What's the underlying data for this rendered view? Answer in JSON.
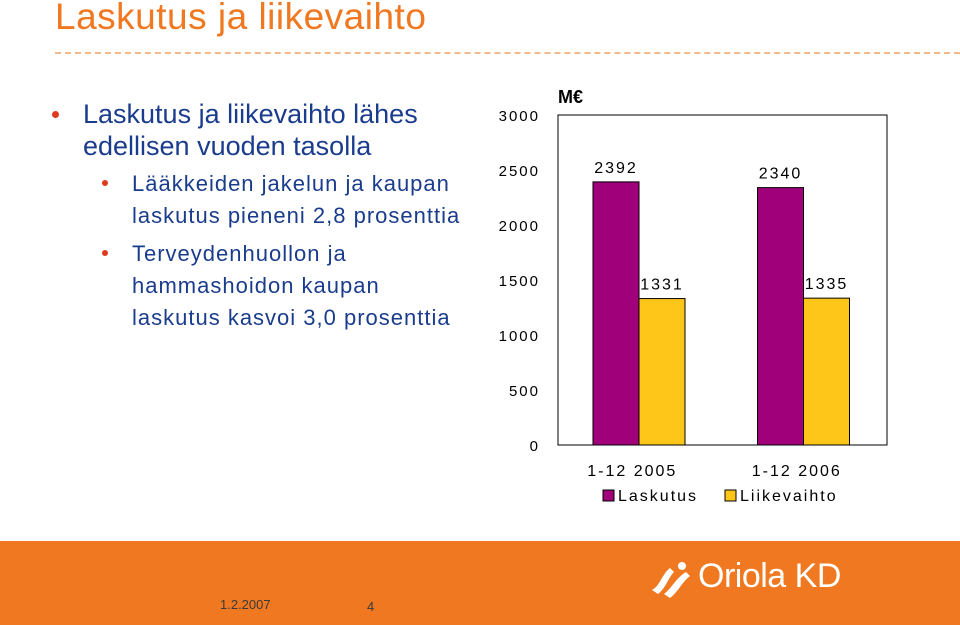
{
  "slide": {
    "title": "Laskutus ja liikevaihto",
    "bullets": [
      {
        "text": "Laskutus ja liikevaihto lähes edellisen vuoden tasolla",
        "sub": [
          "Lääkkeiden jakelun ja kaupan laskutus pieneni 2,8 prosenttia",
          "Terveydenhuollon ja hammashoidon kaupan laskutus kasvoi 3,0 prosenttia"
        ]
      }
    ],
    "footer": {
      "date": "1.2.2007",
      "page": "4",
      "logo": "Oriola KD"
    },
    "colors": {
      "title": "#f07820",
      "footer_band": "#f07820",
      "bullet_text": "#1a3c8c",
      "bullet_dot": "#e03a1e"
    }
  },
  "chart_data": {
    "type": "bar",
    "title": "",
    "ylabel": "M€",
    "xlabel": "",
    "ylim": [
      0,
      3000
    ],
    "yticks": [
      0,
      500,
      1000,
      1500,
      2000,
      2500,
      3000
    ],
    "categories": [
      "1-12 2005",
      "1-12 2006"
    ],
    "series": [
      {
        "name": "Laskutus",
        "values": [
          2392,
          2340
        ],
        "color": "#a0007a"
      },
      {
        "name": "Liikevaihto",
        "values": [
          1331,
          1335
        ],
        "color": "#ffc61a"
      }
    ],
    "grid": false,
    "legend": "bottom",
    "data_labels": true
  }
}
